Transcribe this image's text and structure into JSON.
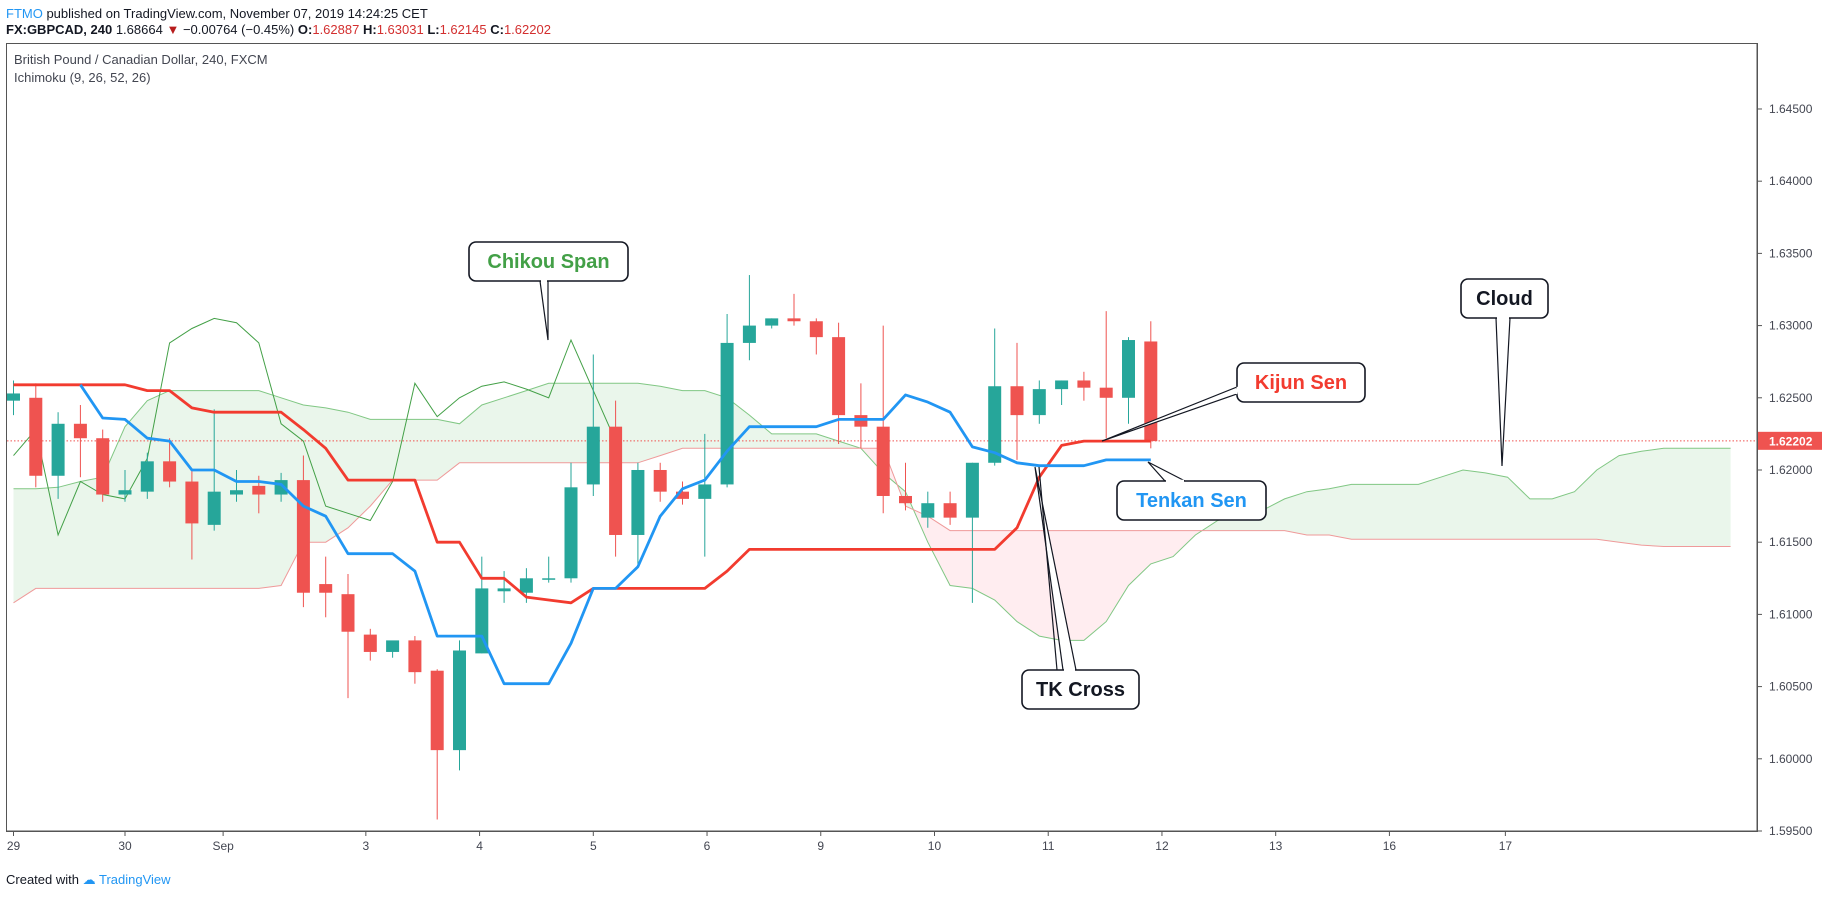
{
  "header": {
    "publisher": "FTMO",
    "published_text": "published on TradingView.com, November 07, 2019 14:24:25 CET",
    "symbol": "FX:GBPCAD, 240",
    "last": "1.68664",
    "change": "−0.00764 (−0.45%)",
    "open_label": "O:",
    "open": "1.62887",
    "high_label": "H:",
    "high": "1.63031",
    "low_label": "L:",
    "low": "1.62145",
    "close_label": "C:",
    "close": "1.62202"
  },
  "legend": {
    "title": "British Pound / Canadian Dollar, 240, FXCM",
    "indicator": "Ichimoku (9, 26, 52, 26)"
  },
  "footer": {
    "created_with": "Created with",
    "brand": "TradingView"
  },
  "colors": {
    "up": "#26a69a",
    "down": "#ef5350",
    "tenkan": "#2196f3",
    "kijun": "#f23b2f",
    "chikou": "#43a047",
    "cloud_green": "#e8f5e9",
    "cloud_red": "#ffebee",
    "price_tag": "#ef5350"
  },
  "chart_data": {
    "type": "candlestick",
    "ylim": [
      1.595,
      1.6495
    ],
    "y_ticks": [
      "1.64500",
      "1.64000",
      "1.63500",
      "1.63000",
      "1.62500",
      "1.62000",
      "1.61500",
      "1.61000",
      "1.60500",
      "1.60000",
      "1.59500"
    ],
    "x_ticks": [
      "29",
      "30",
      "Sep",
      "3",
      "4",
      "5",
      "6",
      "9",
      "10",
      "11",
      "12",
      "13",
      "16",
      "17"
    ],
    "last_price_label": "1.62202",
    "last_price": 1.62202,
    "candles": [
      {
        "o": 1.6248,
        "h": 1.6262,
        "l": 1.6238,
        "c": 1.6253
      },
      {
        "o": 1.625,
        "h": 1.626,
        "l": 1.6188,
        "c": 1.6196
      },
      {
        "o": 1.6196,
        "h": 1.624,
        "l": 1.618,
        "c": 1.6232
      },
      {
        "o": 1.6232,
        "h": 1.6245,
        "l": 1.6195,
        "c": 1.6222
      },
      {
        "o": 1.6222,
        "h": 1.6228,
        "l": 1.6178,
        "c": 1.6183
      },
      {
        "o": 1.6183,
        "h": 1.62,
        "l": 1.6178,
        "c": 1.6186
      },
      {
        "o": 1.6185,
        "h": 1.6212,
        "l": 1.618,
        "c": 1.6206
      },
      {
        "o": 1.6206,
        "h": 1.6222,
        "l": 1.6188,
        "c": 1.6192
      },
      {
        "o": 1.6192,
        "h": 1.62,
        "l": 1.6138,
        "c": 1.6163
      },
      {
        "o": 1.6162,
        "h": 1.6242,
        "l": 1.6158,
        "c": 1.6185
      },
      {
        "o": 1.6183,
        "h": 1.62,
        "l": 1.6178,
        "c": 1.6186
      },
      {
        "o": 1.6189,
        "h": 1.6196,
        "l": 1.617,
        "c": 1.6183
      },
      {
        "o": 1.6183,
        "h": 1.6198,
        "l": 1.6178,
        "c": 1.6193
      },
      {
        "o": 1.6193,
        "h": 1.621,
        "l": 1.6105,
        "c": 1.6115
      },
      {
        "o": 1.6121,
        "h": 1.614,
        "l": 1.6098,
        "c": 1.6115
      },
      {
        "o": 1.6114,
        "h": 1.6128,
        "l": 1.6042,
        "c": 1.6088
      },
      {
        "o": 1.6086,
        "h": 1.609,
        "l": 1.6068,
        "c": 1.6074
      },
      {
        "o": 1.6074,
        "h": 1.608,
        "l": 1.607,
        "c": 1.6082
      },
      {
        "o": 1.6082,
        "h": 1.6085,
        "l": 1.6052,
        "c": 1.606
      },
      {
        "o": 1.6061,
        "h": 1.6062,
        "l": 1.5958,
        "c": 1.6006
      },
      {
        "o": 1.6006,
        "h": 1.6082,
        "l": 1.5992,
        "c": 1.6075
      },
      {
        "o": 1.6073,
        "h": 1.614,
        "l": 1.6073,
        "c": 1.6118
      },
      {
        "o": 1.6116,
        "h": 1.613,
        "l": 1.6108,
        "c": 1.6118
      },
      {
        "o": 1.6115,
        "h": 1.6132,
        "l": 1.6108,
        "c": 1.6125
      },
      {
        "o": 1.6125,
        "h": 1.614,
        "l": 1.6122,
        "c": 1.6125
      },
      {
        "o": 1.6125,
        "h": 1.6205,
        "l": 1.6122,
        "c": 1.6188
      },
      {
        "o": 1.619,
        "h": 1.628,
        "l": 1.6182,
        "c": 1.623
      },
      {
        "o": 1.623,
        "h": 1.6248,
        "l": 1.614,
        "c": 1.6155
      },
      {
        "o": 1.6155,
        "h": 1.6205,
        "l": 1.6135,
        "c": 1.62
      },
      {
        "o": 1.62,
        "h": 1.6205,
        "l": 1.6178,
        "c": 1.6185
      },
      {
        "o": 1.6185,
        "h": 1.6192,
        "l": 1.6176,
        "c": 1.618
      },
      {
        "o": 1.618,
        "h": 1.6225,
        "l": 1.614,
        "c": 1.619
      },
      {
        "o": 1.619,
        "h": 1.6308,
        "l": 1.6188,
        "c": 1.6288
      },
      {
        "o": 1.6288,
        "h": 1.6335,
        "l": 1.6276,
        "c": 1.63
      },
      {
        "o": 1.63,
        "h": 1.6305,
        "l": 1.6298,
        "c": 1.6305
      },
      {
        "o": 1.6305,
        "h": 1.6322,
        "l": 1.63,
        "c": 1.6303
      },
      {
        "o": 1.6303,
        "h": 1.6305,
        "l": 1.628,
        "c": 1.6292
      },
      {
        "o": 1.6292,
        "h": 1.6302,
        "l": 1.6218,
        "c": 1.6238
      },
      {
        "o": 1.6238,
        "h": 1.626,
        "l": 1.6215,
        "c": 1.623
      },
      {
        "o": 1.623,
        "h": 1.63,
        "l": 1.617,
        "c": 1.6182
      },
      {
        "o": 1.6182,
        "h": 1.6205,
        "l": 1.6172,
        "c": 1.6177
      },
      {
        "o": 1.6167,
        "h": 1.6185,
        "l": 1.616,
        "c": 1.6177
      },
      {
        "o": 1.6177,
        "h": 1.6185,
        "l": 1.6162,
        "c": 1.6167
      },
      {
        "o": 1.6167,
        "h": 1.6205,
        "l": 1.6108,
        "c": 1.6205
      },
      {
        "o": 1.6205,
        "h": 1.6298,
        "l": 1.6203,
        "c": 1.6258
      },
      {
        "o": 1.6258,
        "h": 1.6288,
        "l": 1.6207,
        "c": 1.6238
      },
      {
        "o": 1.6238,
        "h": 1.6262,
        "l": 1.6232,
        "c": 1.6256
      },
      {
        "o": 1.6256,
        "h": 1.6262,
        "l": 1.6245,
        "c": 1.6262
      },
      {
        "o": 1.6262,
        "h": 1.6268,
        "l": 1.6248,
        "c": 1.6257
      },
      {
        "o": 1.6257,
        "h": 1.631,
        "l": 1.6222,
        "c": 1.625
      },
      {
        "o": 1.625,
        "h": 1.6292,
        "l": 1.6232,
        "c": 1.629
      },
      {
        "o": 1.6289,
        "h": 1.6303,
        "l": 1.6215,
        "c": 1.622
      }
    ],
    "tenkan": [
      null,
      null,
      null,
      1.6259,
      1.6236,
      1.6235,
      1.6222,
      1.622,
      1.62,
      1.62,
      1.6192,
      1.6192,
      1.619,
      1.6175,
      1.6168,
      1.6142,
      1.6142,
      1.6142,
      1.613,
      1.6085,
      1.6085,
      1.6085,
      1.6052,
      1.6052,
      1.6052,
      1.608,
      1.6118,
      1.6118,
      1.6133,
      1.6168,
      1.6187,
      1.6193,
      1.6213,
      1.623,
      1.623,
      1.623,
      1.623,
      1.6235,
      1.6235,
      1.6235,
      1.6252,
      1.6247,
      1.624,
      1.6216,
      1.6212,
      1.6205,
      1.6203,
      1.6203,
      1.6203,
      1.6207,
      1.6207,
      1.6207
    ],
    "kijun": [
      1.6259,
      1.6259,
      1.6259,
      1.6259,
      1.6259,
      1.6259,
      1.6255,
      1.6255,
      1.6243,
      1.624,
      1.624,
      1.624,
      1.624,
      1.6228,
      1.6215,
      1.6193,
      1.6193,
      1.6193,
      1.6193,
      1.615,
      1.615,
      1.6125,
      1.6125,
      1.6112,
      1.611,
      1.6108,
      1.6118,
      1.6118,
      1.6118,
      1.6118,
      1.6118,
      1.6118,
      1.613,
      1.6145,
      1.6145,
      1.6145,
      1.6145,
      1.6145,
      1.6145,
      1.6145,
      1.6145,
      1.6145,
      1.6145,
      1.6145,
      1.6145,
      1.616,
      1.6195,
      1.6217,
      1.622,
      1.622,
      1.622,
      1.622
    ],
    "chikou_x": [
      0,
      1,
      2,
      3,
      4,
      5,
      6,
      7,
      8,
      9,
      10,
      11,
      12,
      13,
      14,
      15,
      16,
      17,
      18,
      19,
      20,
      21,
      22,
      23,
      24,
      25,
      26,
      27
    ],
    "chikou": [
      1.621,
      1.6228,
      1.6155,
      1.6192,
      1.6183,
      1.618,
      1.6208,
      1.6288,
      1.6298,
      1.6305,
      1.6302,
      1.6288,
      1.6232,
      1.622,
      1.6175,
      1.617,
      1.6165,
      1.6192,
      1.626,
      1.6237,
      1.625,
      1.6258,
      1.6261,
      1.6256,
      1.625,
      1.629,
      1.6255,
      1.622
    ],
    "span_a": [
      1.6187,
      1.6187,
      1.6188,
      1.6192,
      1.6195,
      1.623,
      1.6248,
      1.6255,
      1.6255,
      1.6255,
      1.6255,
      1.6255,
      1.625,
      1.6245,
      1.6243,
      1.624,
      1.6235,
      1.6235,
      1.6235,
      1.6235,
      1.6232,
      1.6245,
      1.625,
      1.6255,
      1.626,
      1.626,
      1.626,
      1.626,
      1.626,
      1.6258,
      1.6255,
      1.6255,
      1.625,
      1.6238,
      1.6225,
      1.6225,
      1.6225,
      1.622,
      1.6215,
      1.6198,
      1.6185,
      1.615,
      1.612,
      1.6118,
      1.611,
      1.6095,
      1.6085,
      1.6082,
      1.6082,
      1.6095,
      1.612,
      1.6135,
      1.614,
      1.6155,
      1.6165,
      1.617,
      1.6172,
      1.618,
      1.6185,
      1.6187,
      1.619,
      1.619,
      1.619,
      1.619,
      1.6195,
      1.62,
      1.6198,
      1.6195,
      1.618,
      1.618,
      1.6185,
      1.62,
      1.621,
      1.6213,
      1.6215,
      1.6215,
      1.6215,
      1.6215
    ],
    "span_b": [
      1.6108,
      1.6118,
      1.6118,
      1.6118,
      1.6118,
      1.6118,
      1.6118,
      1.6118,
      1.6118,
      1.6118,
      1.6118,
      1.6118,
      1.612,
      1.615,
      1.615,
      1.616,
      1.6175,
      1.6193,
      1.6193,
      1.6193,
      1.6205,
      1.6205,
      1.6205,
      1.6205,
      1.6205,
      1.6205,
      1.6205,
      1.6205,
      1.6205,
      1.621,
      1.6215,
      1.6215,
      1.6215,
      1.6215,
      1.6215,
      1.6215,
      1.6215,
      1.6215,
      1.6215,
      1.6215,
      1.6175,
      1.6168,
      1.6158,
      1.6158,
      1.6158,
      1.6158,
      1.6158,
      1.6158,
      1.6158,
      1.6158,
      1.6158,
      1.6158,
      1.6158,
      1.6158,
      1.6158,
      1.6158,
      1.6158,
      1.6158,
      1.6155,
      1.6155,
      1.6152,
      1.6152,
      1.6152,
      1.6152,
      1.6152,
      1.6152,
      1.6152,
      1.6152,
      1.6152,
      1.6152,
      1.6152,
      1.6152,
      1.615,
      1.6148,
      1.6147,
      1.6147,
      1.6147,
      1.6147
    ],
    "annotations": [
      {
        "text": "Chikou Span",
        "color": "#43a047"
      },
      {
        "text": "Cloud",
        "color": "#131722"
      },
      {
        "text": "Kijun Sen",
        "color": "#f23b2f"
      },
      {
        "text": "Tenkan Sen",
        "color": "#2196f3"
      },
      {
        "text": "TK Cross",
        "color": "#131722"
      }
    ]
  }
}
